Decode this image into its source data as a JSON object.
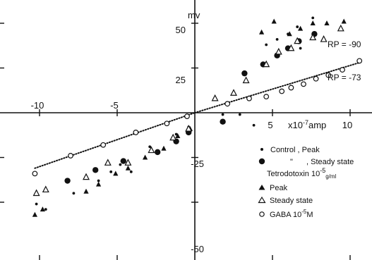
{
  "chart_data": {
    "type": "scatter",
    "ylabel": "mv",
    "xunit": "x10ⁿamp",
    "xunit_parts": [
      "x10",
      "-7",
      "amp"
    ],
    "xlim": [
      -10.8,
      10.8
    ],
    "ylim": [
      -57,
      62
    ],
    "x_ticks": [
      -10,
      -5,
      5,
      10
    ],
    "x_tick_labels": [
      "-10",
      "-5",
      "5",
      "10"
    ],
    "y_ticks": [
      50,
      25,
      -25,
      -50
    ],
    "y_tick_labels": [
      "50",
      "25",
      "-25",
      "-50"
    ],
    "legend_position": "bottom-right",
    "legend": {
      "control_peak": "Control , Peak",
      "control_steady_prefix": "\"",
      "control_steady_suffix": ", Steady state",
      "ttx_title": "Tetrodotoxin 10",
      "ttx_exp": "-5",
      "ttx_unit": "g/ml",
      "ttx_peak": "Peak",
      "ttx_steady": "Steady state",
      "gaba_prefix": "GABA 10",
      "gaba_exp": "-5",
      "gaba_suffix": "M"
    },
    "annotations": [
      {
        "text": "RP = -90",
        "x": 6.8,
        "y": 44
      },
      {
        "text": "RP = -73",
        "x": 6.8,
        "y": 28
      }
    ],
    "series": [
      {
        "name": "Control , Peak",
        "marker": "small-dot",
        "points": [
          [
            -10.2,
            -51
          ],
          [
            -9.6,
            -54
          ],
          [
            -7.8,
            -45
          ],
          [
            -6.2,
            -38
          ],
          [
            -5.4,
            -33
          ],
          [
            -4.8,
            -29
          ],
          [
            -4.1,
            -33
          ],
          [
            -2.9,
            -19
          ],
          [
            -1.2,
            -12
          ],
          [
            -0.4,
            -8
          ],
          [
            1.8,
            -1
          ],
          [
            2.9,
            -1
          ],
          [
            3.8,
            -7
          ],
          [
            4.6,
            38
          ],
          [
            5.3,
            41
          ],
          [
            6.0,
            44
          ],
          [
            6.6,
            48
          ],
          [
            6.8,
            36
          ],
          [
            7.6,
            53
          ]
        ]
      },
      {
        "name": "Control , Steady state",
        "marker": "big-dot",
        "points": [
          [
            -8.2,
            -38
          ],
          [
            -6.4,
            -32
          ],
          [
            -4.6,
            -27
          ],
          [
            -2.4,
            -22
          ],
          [
            -1.2,
            -16
          ],
          [
            -0.4,
            -11
          ],
          [
            1.8,
            -5
          ],
          [
            3.2,
            22
          ],
          [
            4.4,
            27
          ],
          [
            5.3,
            32
          ],
          [
            6.0,
            36
          ],
          [
            6.7,
            40
          ],
          [
            7.7,
            44
          ]
        ]
      },
      {
        "name": "Peak",
        "marker": "filled-triangle",
        "points": [
          [
            -10.3,
            -57
          ],
          [
            -9.8,
            -54
          ],
          [
            -7.0,
            -44
          ],
          [
            -6.2,
            -40
          ],
          [
            -5.1,
            -34
          ],
          [
            -4.3,
            -31
          ],
          [
            -3.2,
            -25
          ],
          [
            -2.0,
            -20
          ],
          [
            -1.1,
            -13
          ],
          [
            -0.3,
            -9
          ],
          [
            4.3,
            45
          ],
          [
            5.1,
            51
          ],
          [
            6.1,
            44
          ],
          [
            6.8,
            47
          ],
          [
            7.6,
            50
          ],
          [
            8.5,
            50
          ],
          [
            9.6,
            51
          ]
        ]
      },
      {
        "name": "Steady state",
        "marker": "open-triangle",
        "points": [
          [
            -10.2,
            -45
          ],
          [
            -9.6,
            -43
          ],
          [
            -7.0,
            -36
          ],
          [
            -5.6,
            -28
          ],
          [
            -4.3,
            -28
          ],
          [
            -2.8,
            -21
          ],
          [
            -1.4,
            -14
          ],
          [
            -0.4,
            -9
          ],
          [
            1.3,
            8
          ],
          [
            2.5,
            11
          ],
          [
            3.3,
            18
          ],
          [
            4.6,
            27
          ],
          [
            5.4,
            34
          ],
          [
            6.2,
            36
          ],
          [
            6.6,
            40
          ],
          [
            7.6,
            42
          ],
          [
            8.3,
            41
          ],
          [
            9.4,
            47
          ]
        ]
      },
      {
        "name": "GABA 10-5M",
        "marker": "open-circle",
        "points": [
          [
            -10.3,
            -34
          ],
          [
            -8.0,
            -24
          ],
          [
            -5.9,
            -18
          ],
          [
            -3.8,
            -11
          ],
          [
            -1.8,
            -6
          ],
          [
            -0.5,
            -2
          ],
          [
            2.1,
            5
          ],
          [
            3.5,
            8
          ],
          [
            4.6,
            9
          ],
          [
            5.6,
            12
          ],
          [
            6.2,
            14
          ],
          [
            7.0,
            16
          ],
          [
            7.8,
            19
          ],
          [
            8.6,
            21
          ],
          [
            9.5,
            24
          ],
          [
            10.6,
            29
          ]
        ]
      },
      {
        "name": "regression-lines",
        "marker": "dotted-line",
        "points": [
          [
            -10.3,
            -31
          ],
          [
            10.6,
            28
          ]
        ]
      }
    ]
  }
}
